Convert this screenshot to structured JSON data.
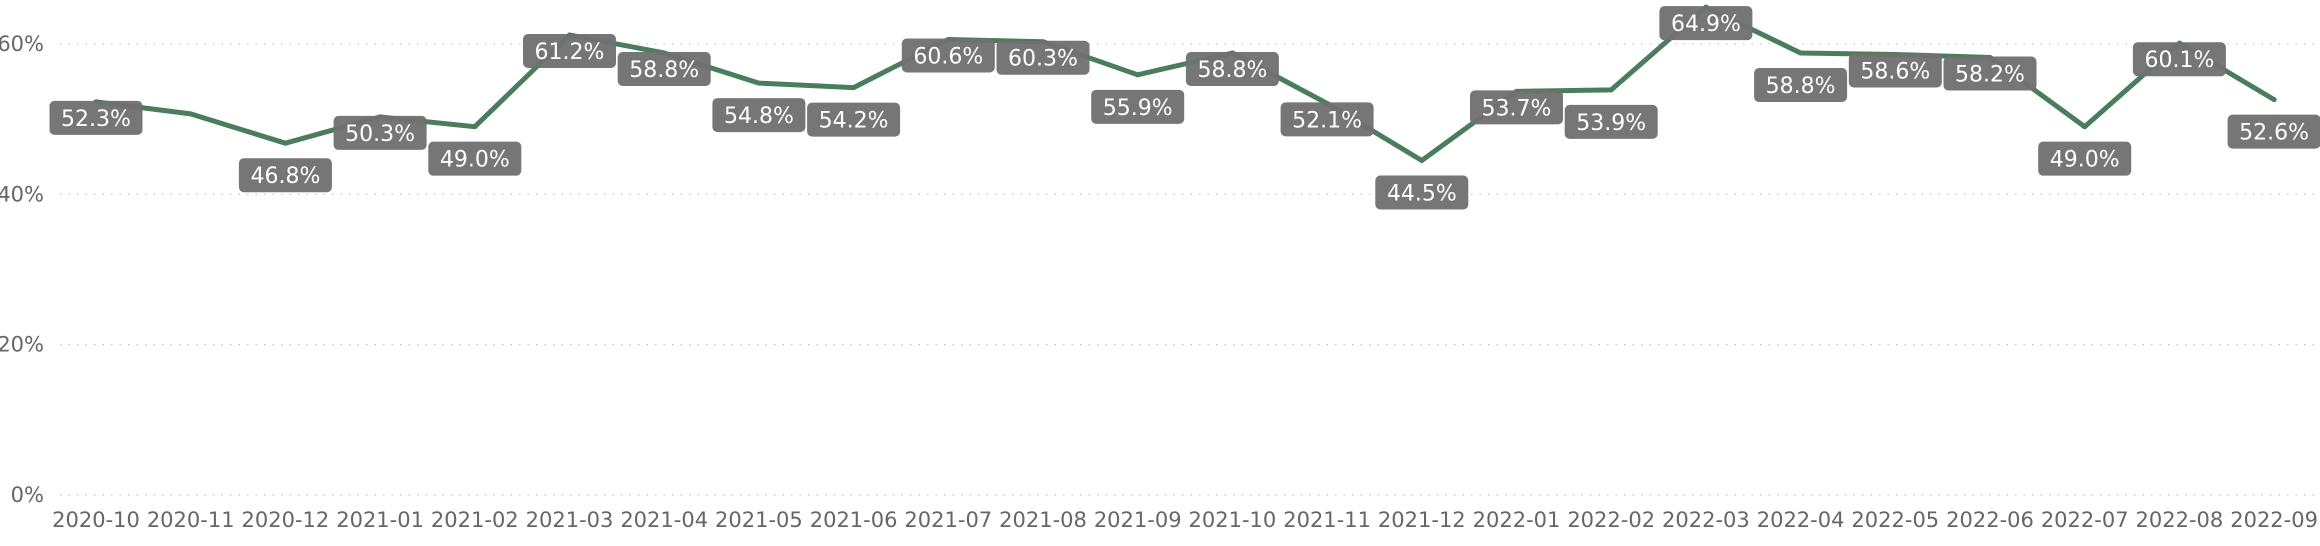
{
  "chart_data": {
    "type": "line",
    "title": "",
    "xlabel": "",
    "ylabel": "",
    "ylim": [
      0,
      0.65
    ],
    "y_ticks": [
      0,
      0.2,
      0.4,
      0.6
    ],
    "y_tick_labels": [
      "0%",
      "20%",
      "40%",
      "60%"
    ],
    "grid": true,
    "line_color": "#4a7d5b",
    "label_color": "#707070",
    "categories": [
      "2020-10",
      "2020-11",
      "2020-12",
      "2021-01",
      "2021-02",
      "2021-03",
      "2021-04",
      "2021-05",
      "2021-06",
      "2021-07",
      "2021-08",
      "2021-09",
      "2021-10",
      "2021-11",
      "2021-12",
      "2022-01",
      "2022-02",
      "2022-03",
      "2022-04",
      "2022-05",
      "2022-06",
      "2022-07",
      "2022-08",
      "2022-09"
    ],
    "values": [
      0.523,
      0.507,
      0.468,
      0.503,
      0.49,
      0.612,
      0.588,
      0.548,
      0.542,
      0.606,
      0.603,
      0.559,
      0.588,
      0.521,
      0.445,
      0.537,
      0.539,
      0.649,
      0.588,
      0.586,
      0.582,
      0.49,
      0.601,
      0.526
    ],
    "data_labels": [
      "52.3%",
      "",
      "46.8%",
      "50.3%",
      "49.0%",
      "61.2%",
      "58.8%",
      "54.8%",
      "54.2%",
      "60.6%",
      "60.3%",
      "55.9%",
      "58.8%",
      "52.1%",
      "44.5%",
      "53.7%",
      "53.9%",
      "64.9%",
      "58.8%",
      "58.6%",
      "58.2%",
      "49.0%",
      "60.1%",
      "52.6%"
    ]
  }
}
